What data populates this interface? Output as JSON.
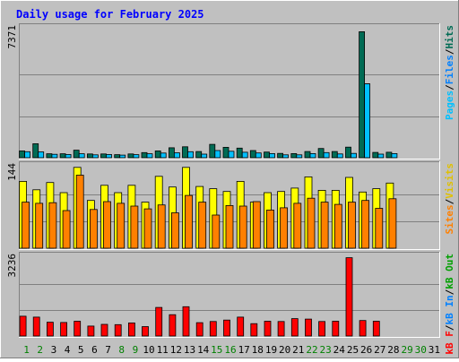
{
  "title": "Daily usage for February 2025",
  "colors": {
    "background": "#c0c0c0",
    "panel": "#c0c0c0",
    "gridline": "#808080",
    "title": "#0000ff",
    "hits": "#006b54",
    "files": "#0080ff",
    "pages": "#00c0ff",
    "visits": "#ffff00",
    "sites": "#ff8000",
    "kb_f": "#ff0000",
    "kb_in": "#0080ff",
    "kb_out": "#00a000",
    "weekend": "#008000",
    "weekday": "#000000"
  },
  "right_labels": {
    "panel1": [
      {
        "text": "Pages",
        "color": "#00c0ff"
      },
      {
        "text": "/",
        "color": "#000000"
      },
      {
        "text": "Files",
        "color": "#0080ff"
      },
      {
        "text": "/",
        "color": "#000000"
      },
      {
        "text": "Hits",
        "color": "#006b54"
      }
    ],
    "panel2": [
      {
        "text": "Sites",
        "color": "#ff8000"
      },
      {
        "text": "/",
        "color": "#000000"
      },
      {
        "text": "Visits",
        "color": "#e0c000"
      }
    ],
    "panel3": [
      {
        "text": "kB F",
        "color": "#ff0000"
      },
      {
        "text": "/",
        "color": "#000000"
      },
      {
        "text": "kB In",
        "color": "#0080ff"
      },
      {
        "text": "/",
        "color": "#000000"
      },
      {
        "text": "kB Out",
        "color": "#00a000"
      }
    ]
  },
  "chart_data": {
    "type": "bar",
    "title": "Daily usage for February 2025",
    "categories": [
      "1",
      "2",
      "3",
      "4",
      "5",
      "6",
      "7",
      "8",
      "9",
      "10",
      "11",
      "12",
      "13",
      "14",
      "15",
      "16",
      "17",
      "18",
      "19",
      "20",
      "21",
      "22",
      "23",
      "24",
      "25",
      "26",
      "27",
      "28",
      "29",
      "30",
      "31"
    ],
    "weekend_days": [
      1,
      2,
      8,
      9,
      15,
      16,
      22,
      23,
      29,
      30
    ],
    "panels": [
      {
        "name": "hits-files-pages",
        "ymax_label": "7371",
        "ylim": [
          0,
          7371
        ],
        "series": [
          {
            "name": "Hits",
            "values": [
              400,
              820,
              230,
              230,
              440,
              220,
              220,
              180,
              220,
              300,
              400,
              580,
              640,
              360,
              780,
              610,
              560,
              420,
              330,
              250,
              240,
              360,
              540,
              360,
              620,
              7371,
              310,
              320,
              0,
              0,
              0
            ]
          },
          {
            "name": "Files",
            "values": [
              0,
              0,
              0,
              0,
              0,
              0,
              0,
              0,
              0,
              0,
              0,
              0,
              0,
              0,
              0,
              0,
              0,
              0,
              0,
              0,
              0,
              0,
              0,
              0,
              0,
              4320,
              0,
              0,
              0,
              0,
              0
            ]
          },
          {
            "name": "Pages",
            "values": [
              350,
              340,
              200,
              190,
              230,
              170,
              190,
              150,
              180,
              230,
              270,
              290,
              350,
              210,
              420,
              380,
              320,
              280,
              240,
              170,
              170,
              240,
              300,
              220,
              250,
              4320,
              210,
              240,
              0,
              0,
              0
            ]
          }
        ]
      },
      {
        "name": "visits-sites",
        "ymax_label": "144",
        "ylim": [
          0,
          144
        ],
        "series": [
          {
            "name": "Visits",
            "values": [
              119,
              104,
              117,
              99,
              144,
              85,
              112,
              99,
              112,
              82,
              128,
              109,
              144,
              110,
              106,
              101,
              119,
              82,
              99,
              101,
              107,
              127,
              103,
              103,
              126,
              100,
              106,
              116,
              0,
              0,
              0
            ]
          },
          {
            "name": "Sites",
            "values": [
              82,
              80,
              81,
              67,
              130,
              69,
              83,
              80,
              75,
              70,
              77,
              63,
              94,
              82,
              59,
              76,
              75,
              83,
              68,
              72,
              80,
              89,
              82,
              78,
              82,
              85,
              71,
              88,
              0,
              0,
              0
            ]
          }
        ]
      },
      {
        "name": "kb",
        "ymax_label": "3236",
        "ylim": [
          0,
          3236
        ],
        "series": [
          {
            "name": "kB F",
            "values": [
              820,
              780,
              570,
              560,
              610,
              410,
              480,
              470,
              540,
              390,
              1180,
              880,
              1210,
              550,
              600,
              660,
              780,
              510,
              610,
              600,
              720,
              700,
              600,
              610,
              3236,
              640,
              610,
              0,
              0,
              0,
              0
            ]
          }
        ]
      }
    ],
    "grid": true
  }
}
